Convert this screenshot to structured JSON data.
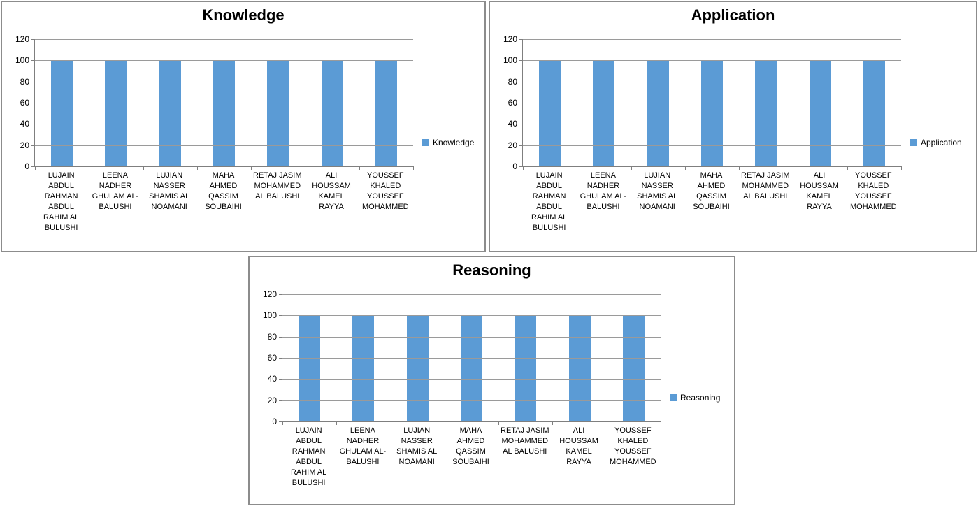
{
  "colors": {
    "bar": "#5b9bd5",
    "gridline": "#9a9a9a",
    "axis": "#7f7f7f",
    "chart_border": "#8c8c8c",
    "background": "#ffffff",
    "text": "#000000"
  },
  "chart_data": [
    {
      "type": "bar",
      "title": "Knowledge",
      "categories": [
        "LUJAIN ABDUL RAHMAN ABDUL RAHIM AL BULUSHI",
        "LEENA NADHER GHULAM AL-BALUSHI",
        "LUJIAN NASSER SHAMIS AL NOAMANI",
        "MAHA AHMED QASSIM SOUBAIHI",
        "RETAJ JASIM MOHAMMED AL BALUSHI",
        "ALI HOUSSAM KAMEL RAYYA",
        "YOUSSEF KHALED YOUSSEF MOHAMMED"
      ],
      "series": [
        {
          "name": "Knowledge",
          "values": [
            100,
            100,
            100,
            100,
            100,
            100,
            100
          ]
        }
      ],
      "xlabel": "",
      "ylabel": "",
      "ylim": [
        0,
        120
      ],
      "y_ticks": [
        0,
        20,
        40,
        60,
        80,
        100,
        120
      ],
      "grid": "horizontal",
      "legend_position": "right",
      "bar_color": "#5b9bd5"
    },
    {
      "type": "bar",
      "title": "Application",
      "categories": [
        "LUJAIN ABDUL RAHMAN ABDUL RAHIM AL BULUSHI",
        "LEENA NADHER GHULAM AL-BALUSHI",
        "LUJIAN NASSER SHAMIS AL NOAMANI",
        "MAHA AHMED QASSIM SOUBAIHI",
        "RETAJ JASIM MOHAMMED AL BALUSHI",
        "ALI HOUSSAM KAMEL RAYYA",
        "YOUSSEF KHALED YOUSSEF MOHAMMED"
      ],
      "series": [
        {
          "name": "Application",
          "values": [
            100,
            100,
            100,
            100,
            100,
            100,
            100
          ]
        }
      ],
      "xlabel": "",
      "ylabel": "",
      "ylim": [
        0,
        120
      ],
      "y_ticks": [
        0,
        20,
        40,
        60,
        80,
        100,
        120
      ],
      "grid": "horizontal",
      "legend_position": "right",
      "bar_color": "#5b9bd5"
    },
    {
      "type": "bar",
      "title": "Reasoning",
      "categories": [
        "LUJAIN ABDUL RAHMAN ABDUL RAHIM AL BULUSHI",
        "LEENA NADHER GHULAM AL-BALUSHI",
        "LUJIAN NASSER SHAMIS AL NOAMANI",
        "MAHA AHMED QASSIM SOUBAIHI",
        "RETAJ JASIM MOHAMMED AL BALUSHI",
        "ALI HOUSSAM KAMEL RAYYA",
        "YOUSSEF KHALED YOUSSEF MOHAMMED"
      ],
      "series": [
        {
          "name": "Reasoning",
          "values": [
            100,
            100,
            100,
            100,
            100,
            100,
            100
          ]
        }
      ],
      "xlabel": "",
      "ylabel": "",
      "ylim": [
        0,
        120
      ],
      "y_ticks": [
        0,
        20,
        40,
        60,
        80,
        100,
        120
      ],
      "grid": "horizontal",
      "legend_position": "right",
      "bar_color": "#5b9bd5"
    }
  ]
}
